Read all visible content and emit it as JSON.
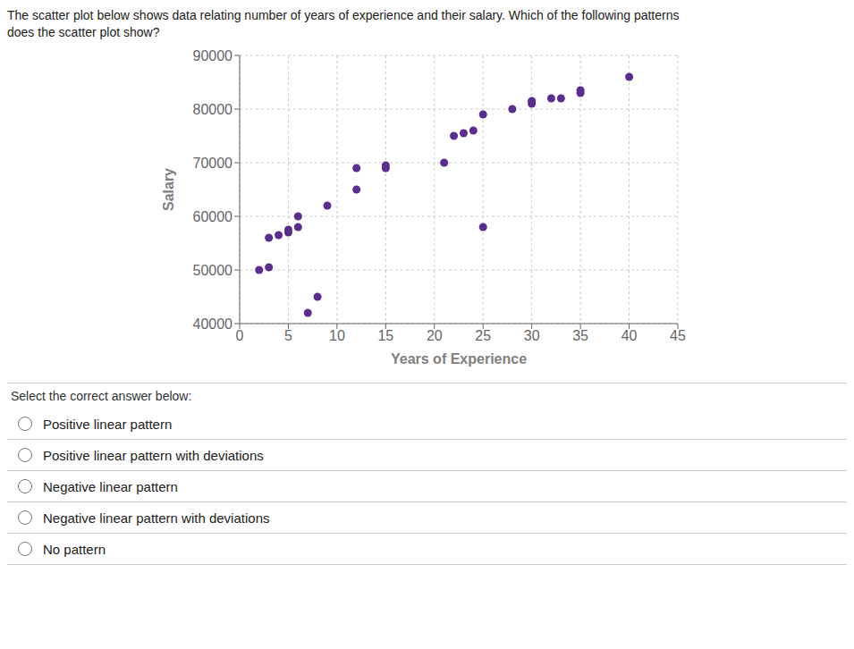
{
  "chart_data": {
    "type": "scatter",
    "title": "The scatter plot below shows data relating number of years of experience and their salary. Which of the following patterns\ndoes the scatter plot show?",
    "xlabel": "Years of Experience",
    "ylabel": "Salary",
    "x": [
      2,
      3,
      3,
      4,
      5,
      5,
      6,
      6,
      7,
      8,
      9,
      12,
      12,
      15,
      15,
      21,
      22,
      23,
      24,
      25,
      25,
      28,
      30,
      30,
      32,
      33,
      35,
      35,
      40
    ],
    "values": [
      50000,
      50500,
      56000,
      56500,
      57000,
      57500,
      58000,
      60000,
      42000,
      45000,
      62000,
      65000,
      69000,
      69000,
      69500,
      70000,
      75000,
      75500,
      76000,
      79000,
      58000,
      80000,
      81000,
      81500,
      82000,
      82000,
      83000,
      83500,
      86000
    ],
    "color": "#5b2d8e",
    "xlim": [
      0,
      45
    ],
    "ylim": [
      40000,
      90000
    ],
    "xticks": [
      0,
      5,
      10,
      15,
      20,
      25,
      30,
      35,
      40,
      45
    ],
    "yticks": [
      40000,
      50000,
      60000,
      70000,
      80000,
      90000
    ],
    "grid": true,
    "annotations": [
      "Select the correct answer below:",
      "Positive linear pattern",
      "Positive linear pattern with deviations",
      "Negative linear pattern",
      "Negative linear pattern with deviations",
      "No pattern"
    ]
  }
}
